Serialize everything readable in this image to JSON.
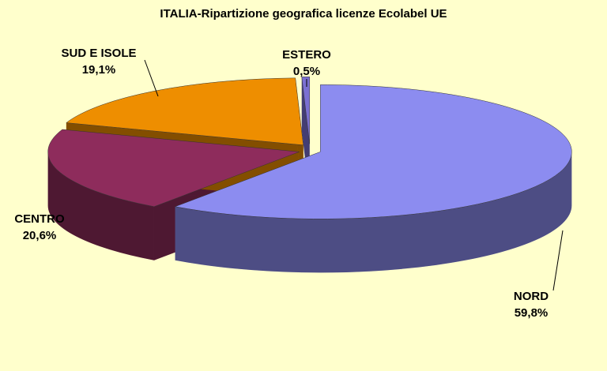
{
  "chart_data": {
    "type": "pie",
    "title": "ITALIA-Ripartizione  geografica  licenze  Ecolabel  UE",
    "categories": [
      "NORD",
      "CENTRO",
      "SUD E ISOLE",
      "ESTERO"
    ],
    "values": [
      59.8,
      20.6,
      19.1,
      0.5
    ],
    "value_labels": [
      "59,8%",
      "20,6%",
      "19,1%",
      "0,5%"
    ],
    "colors": [
      "#8c8cf0",
      "#8e2c5c",
      "#ee8e00",
      "#7b70d2"
    ]
  }
}
